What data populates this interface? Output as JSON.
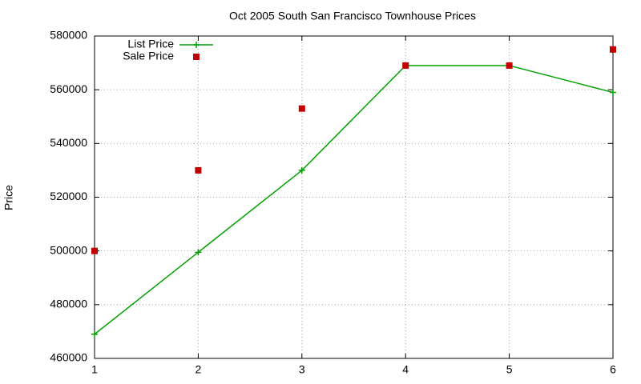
{
  "chart_data": {
    "type": "line",
    "title": "Oct 2005 South San Francisco Townhouse Prices",
    "y_label": "Price",
    "x": [
      1,
      2,
      3,
      4,
      5,
      6
    ],
    "series": [
      {
        "name": "List Price",
        "color": "#00a000",
        "marker": "plus",
        "lines": true,
        "values": [
          469000,
          499500,
          530000,
          569000,
          569000,
          559000
        ]
      },
      {
        "name": "Sale Price",
        "color": "#c00000",
        "marker": "square",
        "lines": false,
        "values": [
          500000,
          530000,
          553000,
          569000,
          569000,
          575000
        ]
      }
    ],
    "xlim": [
      1,
      6
    ],
    "xticks": [
      1,
      2,
      3,
      4,
      5,
      6
    ],
    "ylim": [
      460000,
      580000
    ],
    "yticks": [
      460000,
      480000,
      500000,
      520000,
      540000,
      560000,
      580000
    ],
    "grid": true,
    "legend": "top-left"
  }
}
